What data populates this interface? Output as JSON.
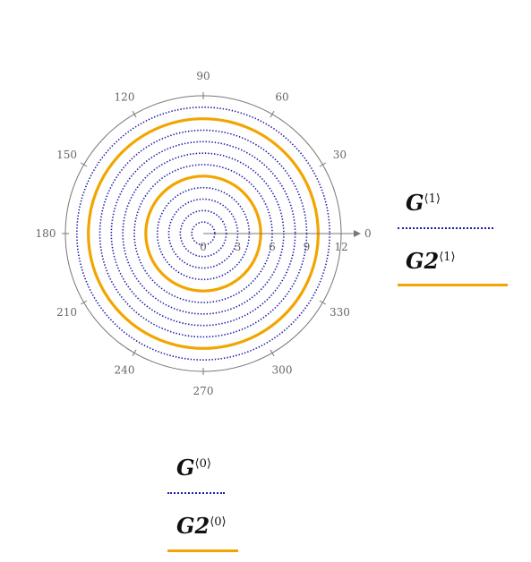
{
  "chart_data": {
    "type": "polar-line",
    "angle_ticks": [
      "0",
      "30",
      "60",
      "90",
      "120",
      "150",
      "180",
      "210",
      "240",
      "270",
      "300",
      "330"
    ],
    "radial_ticks": [
      "0",
      "3",
      "6",
      "9",
      "12"
    ],
    "r_max": 12,
    "colors": {
      "G": "#1a1aa6",
      "G2": "#f2a500",
      "axis": "#777777"
    },
    "series": [
      {
        "name": "G",
        "style": "dotted",
        "circles_r": [
          1,
          2,
          3,
          4,
          5,
          6,
          7,
          8,
          9,
          10,
          11
        ]
      },
      {
        "name": "G2",
        "style": "solid",
        "circles_r": [
          5,
          10
        ]
      }
    ]
  },
  "legends": [
    {
      "base": "G",
      "sup": "⟨1⟩",
      "style": "dotted"
    },
    {
      "base": "G2",
      "sup": "⟨1⟩",
      "style": "solid"
    },
    {
      "base": "G",
      "sup": "⟨0⟩",
      "style": "dotted"
    },
    {
      "base": "G2",
      "sup": "⟨0⟩",
      "style": "solid"
    }
  ]
}
